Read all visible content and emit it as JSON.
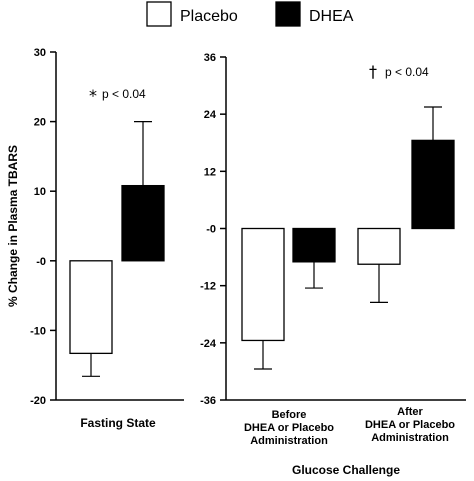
{
  "chart_data": {
    "type": "bar",
    "ylabel": "% Change in Plasma TBARS",
    "legend": {
      "placement": "top-center",
      "entries": [
        {
          "label": "Placebo",
          "color": "#ffffff"
        },
        {
          "label": "DHEA",
          "color": "#000000"
        }
      ]
    },
    "panels": [
      {
        "xlabel": "Fasting State",
        "ylim": [
          -20,
          30
        ],
        "yticks": [
          -20,
          -10,
          0,
          10,
          20,
          30
        ],
        "ytick_labels": [
          "-20",
          "-10",
          "-0",
          "10",
          "20",
          "30"
        ],
        "categories": [
          ""
        ],
        "series": [
          {
            "name": "Placebo",
            "values": [
              -13.3
            ],
            "errors": [
              3.3
            ]
          },
          {
            "name": "DHEA",
            "values": [
              10.8
            ],
            "errors": [
              9.2
            ]
          }
        ],
        "annotations": [
          {
            "symbol": "*",
            "text": "p < 0.04",
            "x": 0.5,
            "y": 24.5
          }
        ]
      },
      {
        "xlabel": "Glucose Challenge",
        "ylim": [
          -36,
          36
        ],
        "yticks": [
          -36,
          -24,
          -12,
          0,
          12,
          24,
          36
        ],
        "ytick_labels": [
          "-36",
          "-24",
          "-12",
          "-0",
          "12",
          "24",
          "36"
        ],
        "categories": [
          [
            "Before",
            "DHEA or Placebo",
            "Administration"
          ],
          [
            "After",
            "DHEA or Placebo",
            "Administration"
          ]
        ],
        "series": [
          {
            "name": "Placebo",
            "values": [
              -23.5,
              -7.5
            ],
            "errors": [
              6.0,
              8.0
            ]
          },
          {
            "name": "DHEA",
            "values": [
              -7.0,
              18.5
            ],
            "errors": [
              5.5,
              7.0
            ]
          }
        ],
        "annotations": [
          {
            "symbol": "†",
            "text": "p < 0.04",
            "x": 1.5,
            "y": 31
          }
        ]
      }
    ]
  }
}
